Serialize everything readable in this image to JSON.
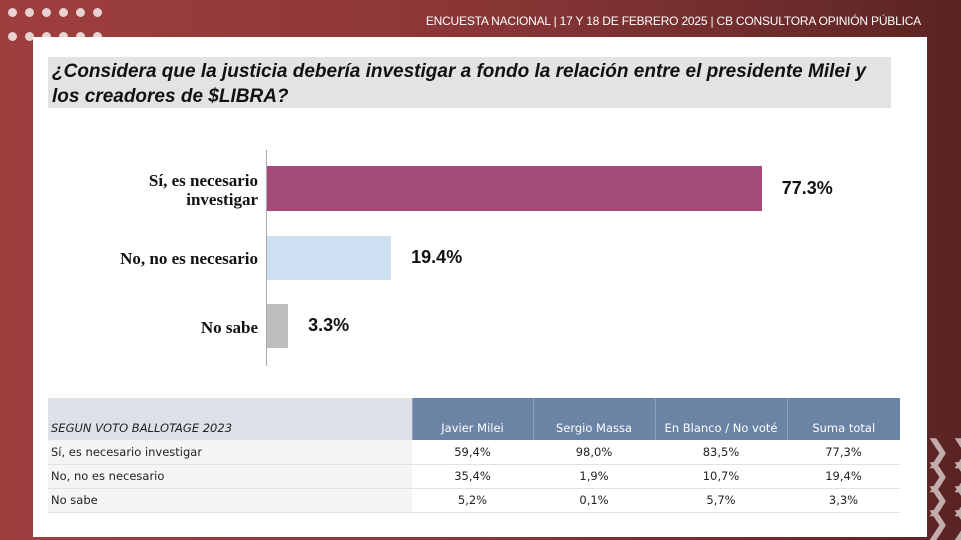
{
  "header": "ENCUESTA NACIONAL  | 17 Y 18 DE FEBRERO 2025 | CB CONSULTORA OPINIÓN PÚBLICA",
  "question": "¿Considera que la justicia debería investigar a fondo la relación entre el presidente Milei y los creadores de $LIBRA?",
  "chart_data": {
    "type": "bar",
    "orientation": "horizontal",
    "title": "¿Considera que la justicia debería investigar a fondo la relación entre el presidente Milei y los creadores de $LIBRA?",
    "categories": [
      "Sí, es necesario investigar",
      "No, no es necesario",
      "No sabe"
    ],
    "values": [
      77.3,
      19.4,
      3.3
    ],
    "labels": [
      "77.3%",
      "19.4%",
      "3.3%"
    ],
    "colors": [
      "#a44a78",
      "#cfe0f2",
      "#bdbdbd"
    ],
    "xlim": [
      0,
      100
    ]
  },
  "table": {
    "title": "SEGUN VOTO BALLOTAGE 2023",
    "columns": [
      "Javier Milei",
      "Sergio Massa",
      "En Blanco / No voté",
      "Suma total"
    ],
    "rows": [
      {
        "label": "Sí, es necesario investigar",
        "cells": [
          "59,4%",
          "98,0%",
          "83,5%",
          "77,3%"
        ]
      },
      {
        "label": "No, no es necesario",
        "cells": [
          "35,4%",
          "1,9%",
          "10,7%",
          "19,4%"
        ]
      },
      {
        "label": "No sabe",
        "cells": [
          "5,2%",
          "0,1%",
          "5,7%",
          "3,3%"
        ]
      }
    ]
  }
}
